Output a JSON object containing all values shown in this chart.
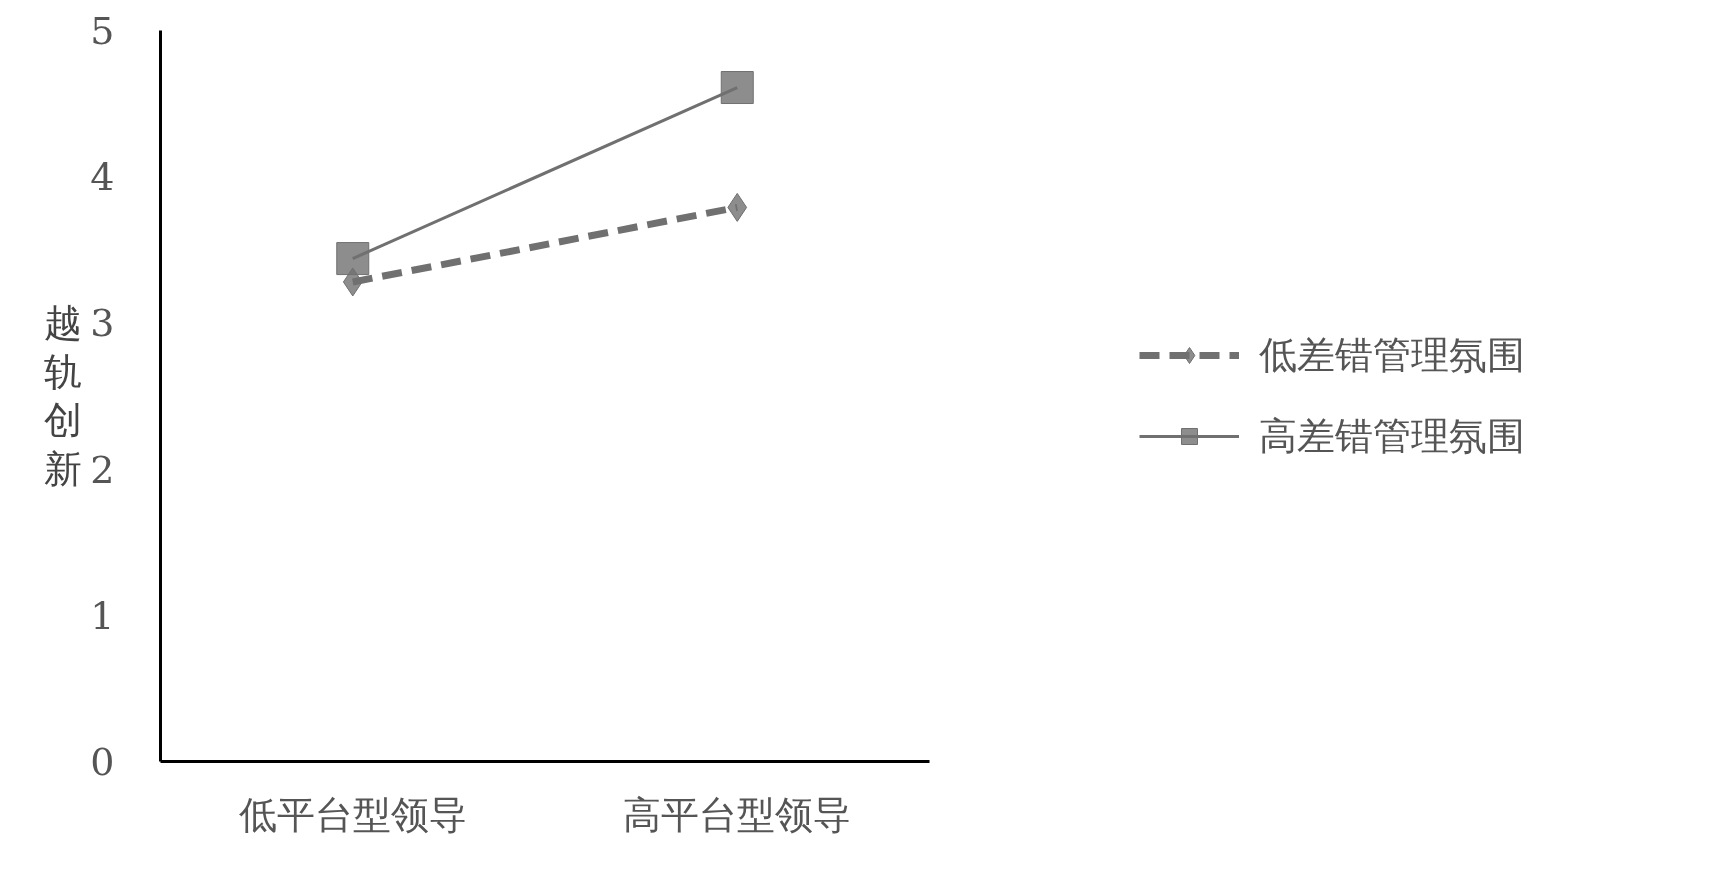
{
  "chart_data": {
    "type": "line",
    "ylabel": "越轨创新",
    "categories": [
      "低平台型领导",
      "高平台型领导"
    ],
    "series": [
      {
        "name": "低差错管理氛围",
        "color": "#707070",
        "values": [
          3.28,
          3.79
        ],
        "line_style": "dashed",
        "marker": "diamond"
      },
      {
        "name": "高差错管理氛围",
        "color": "#707070",
        "values": [
          3.44,
          4.61
        ],
        "line_style": "solid",
        "marker": "square"
      }
    ],
    "ylim": [
      0,
      5
    ],
    "yticks": [
      0,
      1,
      2,
      3,
      4,
      5
    ],
    "grid": false,
    "legend": "right"
  }
}
